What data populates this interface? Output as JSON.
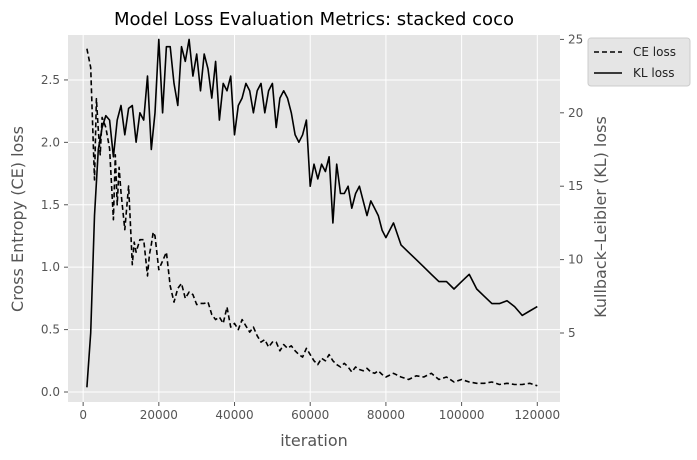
{
  "chart_data": {
    "type": "line",
    "title": "Model Loss Evaluation Metrics: stacked coco",
    "xlabel": "iteration",
    "ylabel_left": "Cross Entropy (CE) loss",
    "ylabel_right": "Kullback–Leibler (KL) loss",
    "xlim": [
      -4000,
      126000
    ],
    "ylim_left": [
      -0.08,
      2.86
    ],
    "ylim_right": [
      0.3,
      25.3
    ],
    "x_ticks": [
      0,
      20000,
      40000,
      60000,
      80000,
      100000,
      120000
    ],
    "y_ticks_left": [
      0.0,
      0.5,
      1.0,
      1.5,
      2.0,
      2.5
    ],
    "y_ticks_right": [
      5,
      10,
      15,
      20,
      25
    ],
    "grid": true,
    "legend_position": "outside-top-right",
    "colors": {
      "background": "#e5e5e5",
      "grid": "#ffffff",
      "series": "#000000"
    },
    "series": [
      {
        "name": "CE loss",
        "axis": "left",
        "style": "dashed",
        "x": [
          1000,
          2000,
          3000,
          3500,
          4000,
          4500,
          5000,
          6000,
          7000,
          8000,
          8500,
          9000,
          9500,
          10000,
          11000,
          12000,
          12500,
          13000,
          13500,
          14000,
          15000,
          16000,
          17000,
          17500,
          18000,
          18500,
          19000,
          20000,
          21000,
          22000,
          23000,
          24000,
          25000,
          26000,
          27000,
          28000,
          29000,
          30000,
          31000,
          32000,
          33000,
          34000,
          35000,
          36000,
          37000,
          38000,
          39000,
          40000,
          41000,
          42000,
          43000,
          44000,
          45000,
          46000,
          47000,
          48000,
          49000,
          50000,
          51000,
          52000,
          53000,
          54000,
          55000,
          56000,
          57000,
          58000,
          59000,
          60000,
          61000,
          62000,
          63000,
          64000,
          65000,
          66000,
          67000,
          68000,
          69000,
          70000,
          71000,
          72000,
          73000,
          74000,
          75000,
          76000,
          77000,
          78000,
          79000,
          80000,
          82000,
          84000,
          86000,
          88000,
          90000,
          92000,
          94000,
          96000,
          98000,
          100000,
          102000,
          104000,
          106000,
          108000,
          110000,
          112000,
          114000,
          116000,
          118000,
          120000
        ],
        "values": [
          2.75,
          2.6,
          1.7,
          2.35,
          2.1,
          1.9,
          2.2,
          2.12,
          1.95,
          1.38,
          1.9,
          1.5,
          1.8,
          1.6,
          1.3,
          1.65,
          1.35,
          1.02,
          1.2,
          1.12,
          1.22,
          1.22,
          0.93,
          1.1,
          1.18,
          1.28,
          1.25,
          0.98,
          1.05,
          1.12,
          0.85,
          0.72,
          0.83,
          0.87,
          0.75,
          0.8,
          0.78,
          0.7,
          0.71,
          0.71,
          0.72,
          0.62,
          0.58,
          0.6,
          0.55,
          0.68,
          0.52,
          0.55,
          0.5,
          0.58,
          0.53,
          0.48,
          0.52,
          0.45,
          0.4,
          0.42,
          0.36,
          0.4,
          0.4,
          0.33,
          0.38,
          0.35,
          0.37,
          0.33,
          0.3,
          0.28,
          0.35,
          0.3,
          0.25,
          0.22,
          0.27,
          0.25,
          0.3,
          0.25,
          0.22,
          0.2,
          0.23,
          0.2,
          0.16,
          0.2,
          0.18,
          0.17,
          0.19,
          0.16,
          0.15,
          0.17,
          0.14,
          0.12,
          0.15,
          0.12,
          0.1,
          0.13,
          0.12,
          0.15,
          0.1,
          0.12,
          0.08,
          0.1,
          0.08,
          0.07,
          0.07,
          0.08,
          0.06,
          0.07,
          0.06,
          0.06,
          0.07,
          0.05
        ]
      },
      {
        "name": "KL loss",
        "axis": "right",
        "style": "solid",
        "x": [
          1000,
          2000,
          3000,
          4000,
          5000,
          6000,
          7000,
          8000,
          9000,
          10000,
          11000,
          12000,
          13000,
          14000,
          15000,
          16000,
          17000,
          18000,
          19000,
          20000,
          21000,
          22000,
          23000,
          24000,
          25000,
          26000,
          27000,
          28000,
          29000,
          30000,
          31000,
          32000,
          33000,
          34000,
          35000,
          36000,
          37000,
          38000,
          39000,
          40000,
          41000,
          42000,
          43000,
          44000,
          45000,
          46000,
          47000,
          48000,
          49000,
          50000,
          51000,
          52000,
          53000,
          54000,
          55000,
          56000,
          57000,
          58000,
          59000,
          60000,
          61000,
          62000,
          63000,
          64000,
          65000,
          66000,
          67000,
          68000,
          69000,
          70000,
          71000,
          72000,
          73000,
          74000,
          75000,
          76000,
          77000,
          78000,
          79000,
          80000,
          82000,
          84000,
          86000,
          88000,
          90000,
          92000,
          94000,
          96000,
          98000,
          100000,
          102000,
          104000,
          106000,
          108000,
          110000,
          112000,
          114000,
          116000,
          118000,
          120000
        ],
        "values": [
          1.3,
          5.0,
          13.0,
          17.5,
          19.0,
          19.8,
          19.5,
          17.0,
          19.5,
          20.5,
          18.5,
          20.3,
          20.5,
          18.0,
          20.0,
          19.5,
          22.5,
          17.5,
          20.0,
          25.0,
          20.0,
          24.5,
          24.5,
          22.0,
          20.5,
          24.5,
          23.5,
          25.0,
          22.5,
          24.0,
          21.5,
          24.0,
          23.0,
          21.0,
          23.5,
          19.5,
          22.0,
          21.5,
          22.5,
          18.5,
          20.5,
          21.0,
          22.0,
          21.5,
          20.0,
          21.5,
          22.0,
          20.0,
          21.5,
          22.0,
          19.0,
          21.0,
          21.5,
          21.0,
          20.0,
          18.5,
          18.0,
          18.5,
          19.5,
          15.0,
          16.5,
          15.5,
          16.5,
          16.0,
          17.0,
          12.5,
          16.5,
          14.5,
          14.5,
          15.0,
          13.5,
          14.5,
          15.0,
          14.0,
          13.0,
          14.0,
          13.5,
          13.0,
          12.0,
          11.5,
          12.5,
          11.0,
          10.5,
          10.0,
          9.5,
          9.0,
          8.5,
          8.5,
          8.0,
          8.5,
          9.0,
          8.0,
          7.5,
          7.0,
          7.0,
          7.2,
          6.8,
          6.2,
          6.5,
          6.8
        ]
      }
    ]
  }
}
